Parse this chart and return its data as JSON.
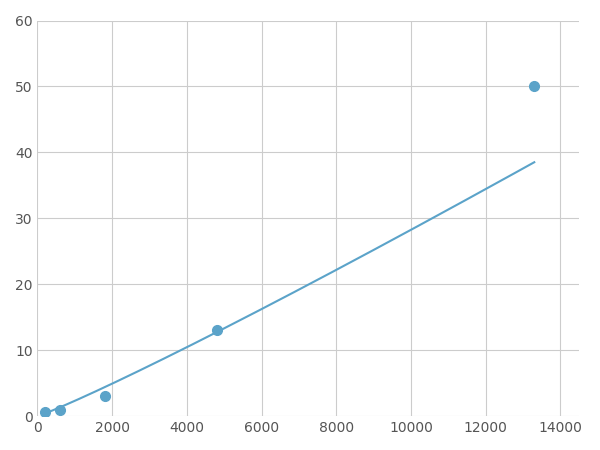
{
  "x_points": [
    200,
    600,
    1800,
    4800,
    13300
  ],
  "y_points": [
    0.6,
    1.0,
    3.0,
    13.0,
    50.0
  ],
  "line_color": "#5ba3c9",
  "marker_color": "#5ba3c9",
  "marker_size": 7,
  "line_width": 1.5,
  "xlim": [
    0,
    14500
  ],
  "ylim": [
    0,
    60
  ],
  "xticks": [
    0,
    2000,
    4000,
    6000,
    8000,
    10000,
    12000,
    14000
  ],
  "yticks": [
    0,
    10,
    20,
    30,
    40,
    50,
    60
  ],
  "grid_color": "#cccccc",
  "background_color": "#ffffff",
  "tick_label_color": "#555555",
  "tick_fontsize": 10
}
